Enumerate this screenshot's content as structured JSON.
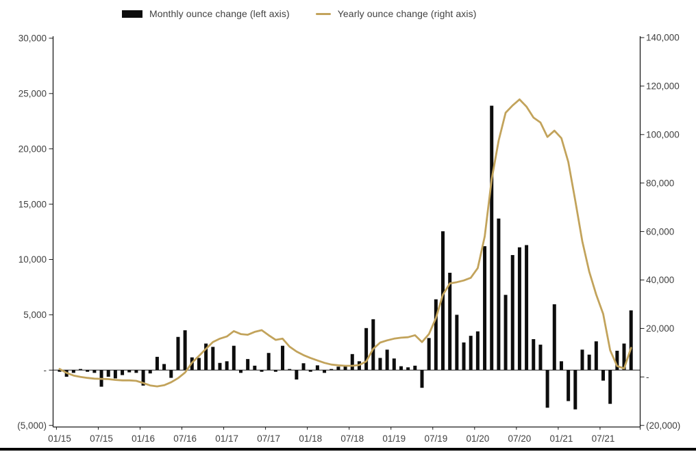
{
  "legend": {
    "monthly_label": "Monthly ounce change (left axis)",
    "yearly_label": "Yearly ounce change (right axis)"
  },
  "colors": {
    "bar": "#0d0d0d",
    "line": "#c2a35b",
    "axis": "#1a1a1a",
    "text": "#3f3f3f",
    "background": "#ffffff"
  },
  "chart_data": {
    "type": "combo-bar-line",
    "title": "",
    "grid": false,
    "legend_position": "top",
    "categories": [
      "01/15",
      "02/15",
      "03/15",
      "04/15",
      "05/15",
      "06/15",
      "07/15",
      "08/15",
      "09/15",
      "10/15",
      "11/15",
      "12/15",
      "01/16",
      "02/16",
      "03/16",
      "04/16",
      "05/16",
      "06/16",
      "07/16",
      "08/16",
      "09/16",
      "10/16",
      "11/16",
      "12/16",
      "01/17",
      "02/17",
      "03/17",
      "04/17",
      "05/17",
      "06/17",
      "07/17",
      "08/17",
      "09/17",
      "10/17",
      "11/17",
      "12/17",
      "01/18",
      "02/18",
      "03/18",
      "04/18",
      "05/18",
      "06/18",
      "07/18",
      "08/18",
      "09/18",
      "10/18",
      "11/18",
      "12/18",
      "01/19",
      "02/19",
      "03/19",
      "04/19",
      "05/19",
      "06/19",
      "07/19",
      "08/19",
      "09/19",
      "10/19",
      "11/19",
      "12/19",
      "01/20",
      "02/20",
      "03/20",
      "04/20",
      "05/20",
      "06/20",
      "07/20",
      "08/20",
      "09/20",
      "10/20",
      "11/20",
      "12/20",
      "01/21",
      "02/21",
      "03/21",
      "04/21",
      "05/21",
      "06/21",
      "07/21",
      "08/21",
      "09/21",
      "10/21",
      "11/21"
    ],
    "x_tick_labels": [
      "01/15",
      "07/15",
      "01/16",
      "07/16",
      "01/17",
      "07/17",
      "01/18",
      "07/18",
      "01/19",
      "07/19",
      "01/20",
      "07/20",
      "01/21",
      "07/21"
    ],
    "series": [
      {
        "name": "Monthly ounce change (left axis)",
        "type": "bar",
        "axis": "left",
        "color": "#0d0d0d",
        "values": [
          -150,
          -600,
          -250,
          100,
          -150,
          -250,
          -1500,
          -600,
          -750,
          -450,
          -200,
          -250,
          -1400,
          -300,
          1200,
          550,
          -700,
          3000,
          3600,
          1150,
          1100,
          2400,
          2100,
          650,
          800,
          2200,
          -250,
          1000,
          400,
          -150,
          1550,
          -150,
          2200,
          100,
          -850,
          620,
          -150,
          430,
          -250,
          100,
          310,
          450,
          1450,
          800,
          3800,
          4600,
          1100,
          1850,
          1050,
          350,
          250,
          400,
          -1600,
          2900,
          6400,
          12550,
          8800,
          5000,
          2500,
          3100,
          3500,
          11200,
          23900,
          13700,
          6800,
          10400,
          11100,
          11300,
          2800,
          2300,
          -3400,
          5950,
          800,
          -2800,
          -3550,
          1850,
          1400,
          2600,
          -950,
          -3050,
          1750,
          2400,
          5400
        ]
      },
      {
        "name": "Yearly ounce change (right axis)",
        "type": "line",
        "axis": "right",
        "color": "#c2a35b",
        "values": [
          3300,
          1700,
          600,
          0,
          -400,
          -700,
          -800,
          -900,
          -1200,
          -1400,
          -1400,
          -1600,
          -2500,
          -3500,
          -3900,
          -3400,
          -2200,
          -500,
          1800,
          5900,
          8700,
          11600,
          14400,
          15800,
          16700,
          18900,
          17700,
          17400,
          18600,
          19300,
          17200,
          15300,
          15800,
          12500,
          10500,
          9000,
          7800,
          6800,
          5800,
          5100,
          4800,
          4600,
          4600,
          4900,
          6400,
          11600,
          14200,
          15100,
          15800,
          16200,
          16400,
          17200,
          14400,
          17700,
          24300,
          33900,
          38600,
          39100,
          39800,
          40900,
          44900,
          58000,
          81500,
          97500,
          109000,
          112000,
          114500,
          111500,
          107000,
          105000,
          99000,
          101600,
          98500,
          88700,
          72700,
          56000,
          43500,
          34000,
          26000,
          11000,
          4500,
          3500,
          12000
        ]
      }
    ],
    "left_axis": {
      "min": -5000,
      "max": 30000,
      "step": 5000,
      "tick_values": [
        30000,
        25000,
        20000,
        15000,
        10000,
        5000,
        0,
        -5000
      ],
      "tick_labels": [
        "30,000",
        "25,000",
        "20,000",
        "15,000",
        "10,000",
        "5,000",
        "-",
        "(5,000)"
      ]
    },
    "right_axis": {
      "min": -20000,
      "max": 140000,
      "step": 20000,
      "tick_values": [
        140000,
        120000,
        100000,
        80000,
        60000,
        40000,
        20000,
        0,
        -20000
      ],
      "tick_labels": [
        "140,000",
        "120,000",
        "100,000",
        "80,000",
        "60,000",
        "40,000",
        "20,000",
        "-",
        "(20,000)"
      ]
    }
  }
}
